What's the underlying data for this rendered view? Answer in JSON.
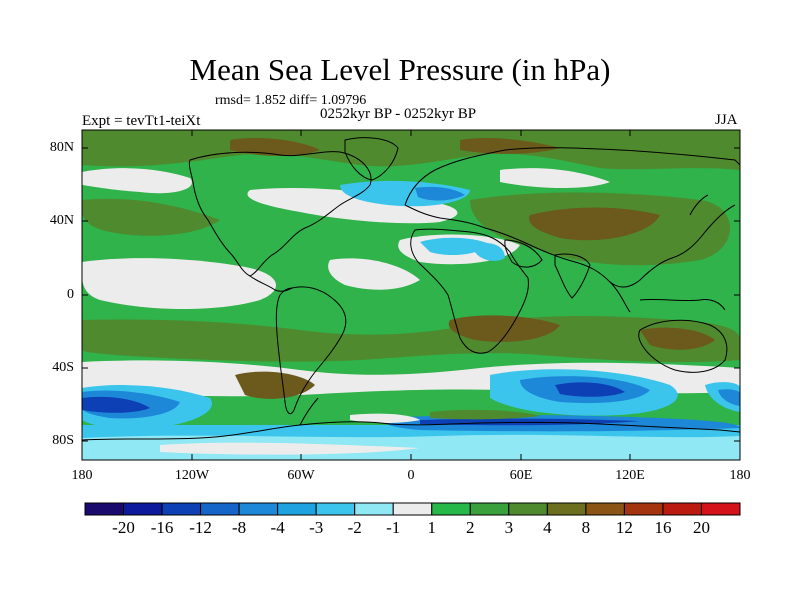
{
  "title": "Mean Sea Level Pressure (in hPa)",
  "stats": "rmsd= 1.852 diff= 1.09796",
  "experiment": "Expt = tevTt1-teiXt",
  "period": "0252kyr BP - 0252kyr BP",
  "season": "JJA",
  "axes": {
    "y_labels": [
      "80N",
      "40N",
      "0",
      "40S",
      "80S"
    ],
    "x_labels": [
      "180",
      "120W",
      "60W",
      "0",
      "60E",
      "120E",
      "180"
    ]
  },
  "colorbar": {
    "labels": [
      "-20",
      "-16",
      "-12",
      "-8",
      "-4",
      "-3",
      "-2",
      "-1",
      "1",
      "2",
      "3",
      "4",
      "8",
      "12",
      "16",
      "20"
    ],
    "colors": [
      "#1a0a6e",
      "#0d1a9c",
      "#0d3fb5",
      "#1565c8",
      "#1e88d8",
      "#1ea3e0",
      "#3cc5ec",
      "#8fe8f3",
      "#ececec",
      "#27b84a",
      "#3aa03c",
      "#4f8a2e",
      "#6b6f1e",
      "#8a5414",
      "#a3340d",
      "#bb1a10",
      "#d4121a"
    ]
  },
  "map_colors": {
    "green": "#2fb34a",
    "olive": "#4f8a2e",
    "brown": "#6b5a1c",
    "white": "#ececec",
    "cyan": "#3cc5ec",
    "light_cyan": "#8fe8f3",
    "blue": "#1e88d8",
    "dark_blue": "#0d3fb5"
  }
}
